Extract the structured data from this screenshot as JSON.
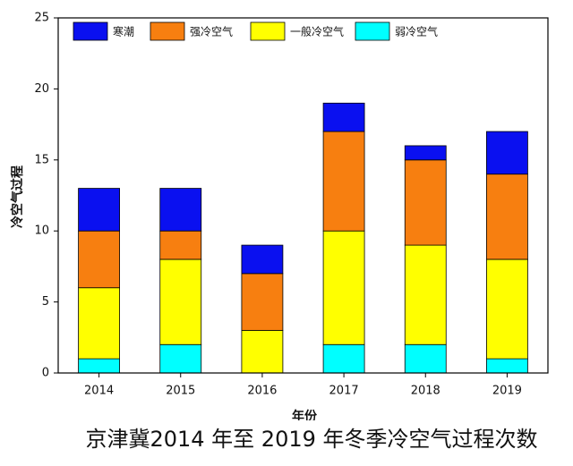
{
  "chart_data": {
    "type": "stacked_bar",
    "caption": "京津冀2014 年至 2019 年冬季冷空气过程次数",
    "x_label": "年份",
    "y_label": "冷空气过程",
    "categories": [
      "2014",
      "2015",
      "2016",
      "2017",
      "2018",
      "2019"
    ],
    "series": [
      {
        "name": "寒潮",
        "color": "#0a10f0",
        "values": [
          3,
          3,
          2,
          2,
          1,
          3
        ]
      },
      {
        "name": "强冷空气",
        "color": "#f77f10",
        "values": [
          4,
          2,
          4,
          7,
          6,
          6
        ]
      },
      {
        "name": "一般冷空气",
        "color": "#ffff00",
        "values": [
          5,
          6,
          3,
          8,
          7,
          7
        ]
      },
      {
        "name": "弱冷空气",
        "color": "#00ffff",
        "values": [
          1,
          2,
          0,
          2,
          2,
          1
        ]
      }
    ],
    "ylim": [
      0,
      25
    ],
    "yticks": [
      0,
      5,
      10,
      15,
      20,
      25
    ]
  }
}
